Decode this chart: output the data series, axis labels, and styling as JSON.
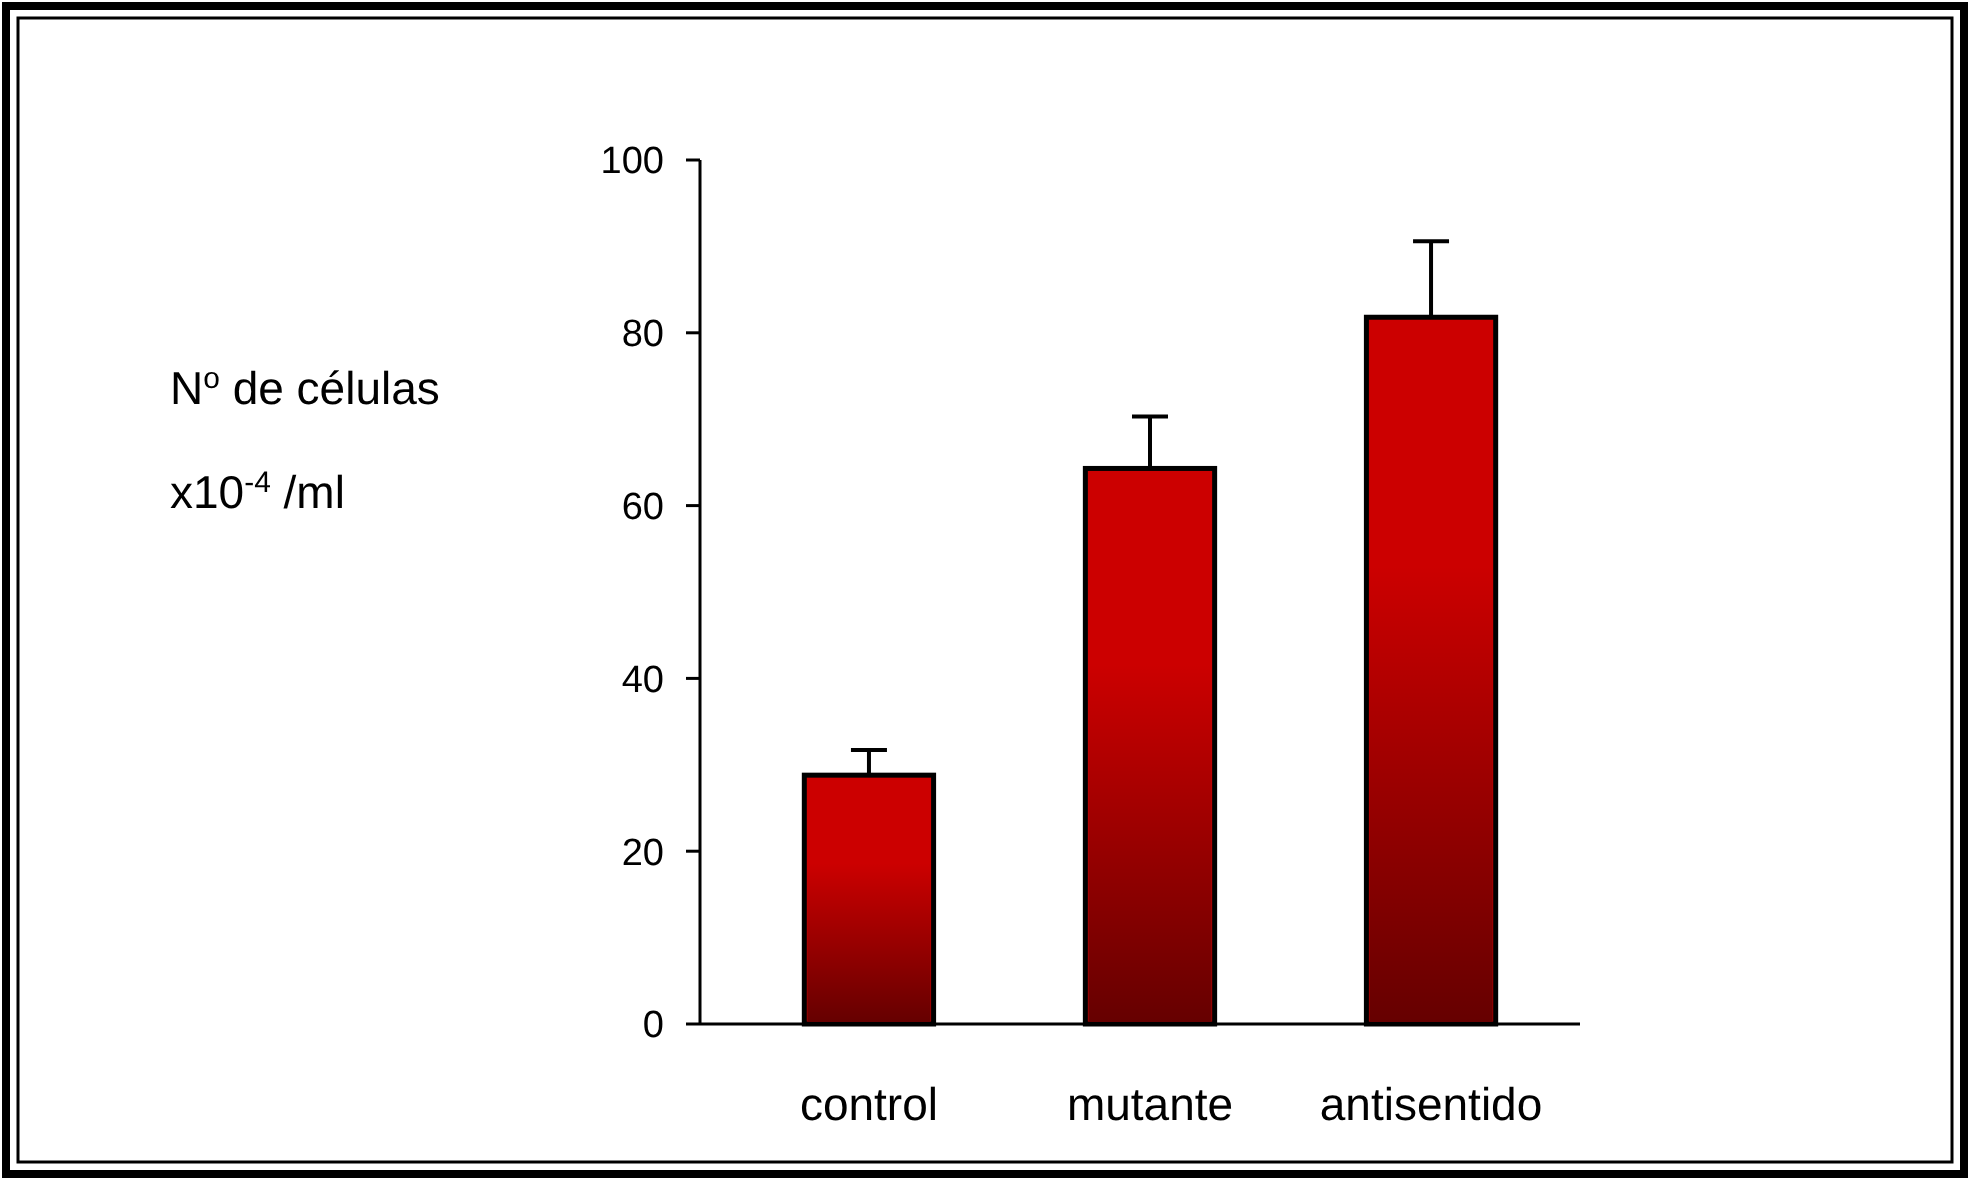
{
  "chart_data": {
    "type": "bar",
    "ylabel": "N$^{o}$ de células\nx10$^{-4}$ /ml",
    "categories": [
      "control",
      "mutante",
      "antisentido"
    ],
    "values": [
      28.8,
      64.3,
      81.8
    ],
    "errors": [
      [
        28.8,
        31.7
      ],
      [
        64.3,
        70.3
      ],
      [
        81.8,
        90.6
      ]
    ],
    "color": "#cc0000",
    "ylim": [
      0,
      100
    ],
    "yticks": [
      0,
      20,
      40,
      60,
      80,
      100
    ],
    "grid": false
  }
}
